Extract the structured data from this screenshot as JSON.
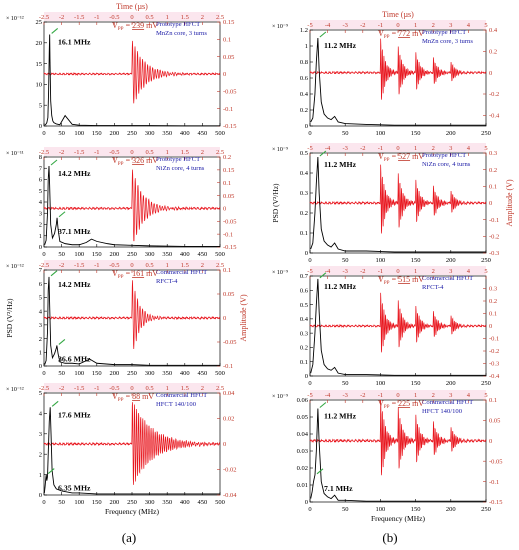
{
  "figure_labels": {
    "a": "(a)",
    "b": "(b)"
  },
  "colors": {
    "psd": "#000000",
    "signal": "#e8141c",
    "axis_right": "#c0392b",
    "annotation_blue": "#1a1aa6",
    "highlight_bg": "#fbe6ee",
    "arrow": "#35a845"
  },
  "chart_data": [
    {
      "id": "a1",
      "type": "line",
      "xlabel": "",
      "x2label": "Time (µs)",
      "ylabel": "",
      "y2label": "",
      "xlim": [
        0,
        500
      ],
      "x2lim": [
        -2.5,
        2.5
      ],
      "ylim": [
        0,
        25
      ],
      "y2lim": [
        -0.15,
        0.15
      ],
      "x_ticks": [
        "0",
        "50",
        "100",
        "150",
        "200",
        "250",
        "300",
        "350",
        "400",
        "450",
        "500"
      ],
      "x2_ticks": [
        "-2.5",
        "-2",
        "-1.5",
        "-1",
        "-0.5",
        "0",
        "0.5",
        "1",
        "1.5",
        "2",
        "2.5"
      ],
      "y_ticks": [
        "0",
        "5",
        "10",
        "15",
        "20",
        "25"
      ],
      "y_exponent": "× 10⁻¹²",
      "y2_ticks": [
        "-0.15",
        "-0.1",
        "-0.05",
        "0",
        "0.05",
        "0.1",
        "0.15"
      ],
      "vpp_text": "Vₚₚ = 239 mV",
      "legend": [
        "Prototype HFCT",
        "MnZn core, 3 turns"
      ],
      "peaks": [
        {
          "label": "16.1 MHz",
          "f": 16.1,
          "psd": 22
        }
      ],
      "psd_series": {
        "x": [
          2,
          5,
          8,
          11,
          13,
          15,
          16.1,
          17,
          19,
          22,
          25,
          28,
          35,
          45,
          60,
          80,
          100,
          150,
          200,
          250,
          300,
          400,
          500
        ],
        "y": [
          0.2,
          0.4,
          0.8,
          2,
          8,
          18,
          22,
          16,
          6,
          2.5,
          1.2,
          0.8,
          0.5,
          0.3,
          2.5,
          0.4,
          0.2,
          0.1,
          0.1,
          0.1,
          0.1,
          0.05,
          0.05
        ]
      },
      "signal": {
        "onset_us": 0.0,
        "amplitude": 0.1,
        "decay": 0.35,
        "freq": 14,
        "bursts": [
          0.0
        ]
      }
    },
    {
      "id": "a2",
      "type": "line",
      "xlabel": "",
      "x2label": "",
      "ylabel": "",
      "y2label": "",
      "xlim": [
        0,
        500
      ],
      "x2lim": [
        -2.5,
        2.5
      ],
      "ylim": [
        0,
        8
      ],
      "y2lim": [
        -0.15,
        0.2
      ],
      "x_ticks": [
        "0",
        "50",
        "100",
        "150",
        "200",
        "250",
        "300",
        "350",
        "400",
        "450",
        "500"
      ],
      "x2_ticks": [
        "-2.5",
        "-2",
        "-1.5",
        "-1",
        "-0.5",
        "0",
        "0.5",
        "1",
        "1.5",
        "2",
        "2.5"
      ],
      "y_ticks": [
        "0",
        "1",
        "2",
        "3",
        "4",
        "5",
        "6",
        "7",
        "8"
      ],
      "y_exponent": "× 10⁻¹¹",
      "y2_ticks": [
        "-0.15",
        "-0.1",
        "-0.05",
        "0",
        "0.05",
        "0.1",
        "0.15",
        "0.2"
      ],
      "vpp_text": "Vₚₚ = 326 mV",
      "legend": [
        "Prototype HFCT",
        "NiZn core, 4 turns"
      ],
      "peaks": [
        {
          "label": "14.2 MHz",
          "f": 14.2,
          "psd": 7.2
        },
        {
          "label": "37.1 MHz",
          "f": 37.1,
          "psd": 2.6
        }
      ],
      "psd_series": {
        "x": [
          2,
          6,
          10,
          12,
          14.2,
          16,
          19,
          24,
          30,
          35,
          37.1,
          40,
          45,
          60,
          80,
          100,
          120,
          135,
          150,
          180,
          200,
          250,
          300,
          400,
          500
        ],
        "y": [
          0.2,
          0.6,
          3,
          6,
          7.2,
          5.5,
          2,
          0.8,
          1.2,
          2,
          2.6,
          1.6,
          0.5,
          0.3,
          0.2,
          0.2,
          0.4,
          0.7,
          0.5,
          0.3,
          0.2,
          0.15,
          0.1,
          0.05,
          0.05
        ]
      },
      "signal": {
        "onset_us": 0.0,
        "amplitude": 0.16,
        "decay": 0.3,
        "freq": 13,
        "bursts": [
          0.0
        ]
      }
    },
    {
      "id": "a3",
      "type": "line",
      "xlabel": "",
      "x2label": "",
      "ylabel": "PSD (V²/Hz)",
      "y2label": "Amplitude (V)",
      "xlim": [
        0,
        500
      ],
      "x2lim": [
        -2.5,
        2.5
      ],
      "ylim": [
        0,
        7
      ],
      "y2lim": [
        -0.1,
        0.1
      ],
      "x_ticks": [
        "0",
        "50",
        "100",
        "150",
        "200",
        "250",
        "300",
        "350",
        "400",
        "450",
        "500"
      ],
      "x2_ticks": [
        "-2.5",
        "-2",
        "-1.5",
        "-1",
        "-0.5",
        "0",
        "0.5",
        "1",
        "1.5",
        "2",
        "2.5"
      ],
      "y_ticks": [
        "0",
        "1",
        "2",
        "3",
        "4",
        "5",
        "6",
        "7"
      ],
      "y_exponent": "× 10⁻¹²",
      "y2_ticks": [
        "-0.1",
        "-0.05",
        "0",
        "0.05",
        "0.1"
      ],
      "vpp_text": "Vₚₚ = 161 mV",
      "legend": [
        "Commercial HFCT",
        "RFCT-4"
      ],
      "peaks": [
        {
          "label": "14.2 MHz",
          "f": 14.2,
          "psd": 6.5
        },
        {
          "label": "36.6 MHz",
          "f": 36.6,
          "psd": 1.5
        }
      ],
      "psd_series": {
        "x": [
          2,
          6,
          10,
          12,
          14.2,
          16,
          19,
          24,
          30,
          35,
          36.6,
          40,
          45,
          60,
          80,
          100,
          130,
          150,
          200,
          250,
          300,
          400,
          500
        ],
        "y": [
          0.1,
          0.4,
          2.5,
          5.5,
          6.5,
          4.5,
          1.5,
          0.6,
          0.9,
          1.3,
          1.5,
          0.9,
          0.3,
          0.2,
          0.2,
          0.15,
          0.5,
          0.2,
          0.1,
          0.1,
          0.05,
          0.05,
          0.05
        ]
      },
      "signal": {
        "onset_us": 0.0,
        "amplitude": 0.085,
        "decay": 0.2,
        "freq": 14,
        "bursts": [
          0.0
        ]
      }
    },
    {
      "id": "a4",
      "type": "line",
      "xlabel": "Frequency (MHz)",
      "x2label": "",
      "ylabel": "",
      "y2label": "",
      "xlim": [
        0,
        500
      ],
      "x2lim": [
        -2.5,
        2.5
      ],
      "ylim": [
        0,
        5
      ],
      "y2lim": [
        -0.04,
        0.04
      ],
      "x_ticks": [
        "0",
        "50",
        "100",
        "150",
        "200",
        "250",
        "300",
        "350",
        "400",
        "450",
        "500"
      ],
      "x2_ticks": [
        "-2.5",
        "-2",
        "-1.5",
        "-1",
        "-0.5",
        "0",
        "0.5",
        "1",
        "1.5",
        "2",
        "2.5"
      ],
      "y_ticks": [
        "0",
        "1",
        "2",
        "3",
        "4",
        "5"
      ],
      "y_exponent": "× 10⁻¹²",
      "y2_ticks": [
        "-0.04",
        "-0.02",
        "0",
        "0.02",
        "0.04"
      ],
      "vpp_text": "Vₚₚ = 88 mV",
      "legend": [
        "Commercial HFCT",
        "HFCT 140/100"
      ],
      "peaks": [
        {
          "label": "17.6 MHz",
          "f": 17.6,
          "psd": 4.3
        },
        {
          "label": "6.35 MHz",
          "f": 6.35,
          "psd": 1.0
        }
      ],
      "psd_series": {
        "x": [
          1,
          3,
          5,
          6.35,
          8,
          10,
          12,
          15,
          17.6,
          20,
          23,
          28,
          35,
          50,
          80,
          100,
          150,
          200,
          250,
          300,
          400,
          500
        ],
        "y": [
          0.1,
          0.4,
          0.8,
          1.0,
          0.7,
          0.9,
          2,
          3.6,
          4.3,
          3,
          1.2,
          0.5,
          0.3,
          0.2,
          0.1,
          0.1,
          0.05,
          0.05,
          0.05,
          0.05,
          0.05,
          0.05
        ]
      },
      "signal": {
        "onset_us": 0.0,
        "amplitude": 0.035,
        "decay": 0.55,
        "freq": 17,
        "bursts": [
          0.0
        ]
      }
    },
    {
      "id": "b1",
      "type": "line",
      "xlabel": "",
      "x2label": "Time (µs)",
      "ylabel": "",
      "y2label": "",
      "xlim": [
        0,
        250
      ],
      "x2lim": [
        -5,
        5
      ],
      "ylim": [
        0,
        1.2
      ],
      "y2lim": [
        -0.5,
        0.4
      ],
      "x_ticks": [
        "0",
        "50",
        "100",
        "150",
        "200",
        "250"
      ],
      "x2_ticks": [
        "-5",
        "-4",
        "-3",
        "-2",
        "-1",
        "0",
        "1",
        "2",
        "3",
        "4",
        "5"
      ],
      "y_ticks": [
        "0",
        "0.2",
        "0.4",
        "0.6",
        "0.8",
        "1",
        "1.2"
      ],
      "y_exponent": "× 10⁻⁹",
      "y2_ticks": [
        "-0.4",
        "-0.2",
        "0",
        "0.2",
        "0.4"
      ],
      "vpp_text": "Vₚₚ = 772 mV",
      "legend": [
        "Prototype HFCT",
        "MnZn core, 3 turns"
      ],
      "peaks": [
        {
          "label": "11.2 MHz",
          "f": 11.2,
          "psd": 1.1
        }
      ],
      "psd_series": {
        "x": [
          1,
          4,
          7,
          9,
          11.2,
          13,
          16,
          20,
          25,
          30,
          35,
          40,
          50,
          80,
          120,
          160,
          200,
          250
        ],
        "y": [
          0.05,
          0.1,
          0.4,
          0.8,
          1.1,
          0.7,
          0.3,
          0.15,
          0.1,
          0.08,
          0.12,
          0.05,
          0.03,
          0.02,
          0.01,
          0.01,
          0.01,
          0.01
        ]
      },
      "signal": {
        "onset_us": -1.0,
        "amplitude": 0.36,
        "decay": 0.25,
        "freq": 11,
        "bursts": [
          -1.0,
          0.0,
          1.0,
          2.0,
          3.0
        ]
      }
    },
    {
      "id": "b2",
      "type": "line",
      "xlabel": "",
      "x2label": "",
      "ylabel": "PSD (V²/Hz)",
      "y2label": "Amplitude (V)",
      "xlim": [
        0,
        250
      ],
      "x2lim": [
        -5,
        5
      ],
      "ylim": [
        0,
        0.5
      ],
      "y2lim": [
        -0.3,
        0.3
      ],
      "x_ticks": [
        "0",
        "50",
        "100",
        "150",
        "200",
        "250"
      ],
      "x2_ticks": [
        "-5",
        "-4",
        "-3",
        "-2",
        "-1",
        "0",
        "1",
        "2",
        "3",
        "4",
        "5"
      ],
      "y_ticks": [
        "0",
        "0.1",
        "0.2",
        "0.3",
        "0.4",
        "0.5"
      ],
      "y_exponent": "× 10⁻⁹",
      "y2_ticks": [
        "-0.3",
        "-0.2",
        "-0.1",
        "0",
        "0.1",
        "0.2",
        "0.3"
      ],
      "vpp_text": "Vₚₚ = 527 mV",
      "legend": [
        "Prototype HFCT",
        "NiZn core, 4 turns"
      ],
      "peaks": [
        {
          "label": "11.2 MHz",
          "f": 11.2,
          "psd": 0.48
        }
      ],
      "psd_series": {
        "x": [
          1,
          4,
          7,
          9,
          11.2,
          13,
          16,
          20,
          25,
          30,
          35,
          40,
          50,
          80,
          120,
          160,
          200,
          250
        ],
        "y": [
          0.02,
          0.05,
          0.2,
          0.35,
          0.48,
          0.3,
          0.12,
          0.06,
          0.04,
          0.03,
          0.05,
          0.02,
          0.01,
          0.01,
          0.005,
          0.005,
          0.005,
          0.005
        ]
      },
      "signal": {
        "onset_us": -1.0,
        "amplitude": 0.26,
        "decay": 0.25,
        "freq": 11,
        "bursts": [
          -1.0,
          0.0,
          1.0,
          2.0,
          3.0
        ]
      }
    },
    {
      "id": "b3",
      "type": "line",
      "xlabel": "",
      "x2label": "",
      "ylabel": "",
      "y2label": "",
      "xlim": [
        0,
        250
      ],
      "x2lim": [
        -5,
        5
      ],
      "ylim": [
        0,
        0.7
      ],
      "y2lim": [
        -0.4,
        0.4
      ],
      "x_ticks": [
        "0",
        "50",
        "100",
        "150",
        "200",
        "250"
      ],
      "x2_ticks": [
        "-5",
        "-4",
        "-3",
        "-2",
        "-1",
        "0",
        "1",
        "2",
        "3",
        "4",
        "5"
      ],
      "y_ticks": [
        "0",
        "0.1",
        "0.2",
        "0.3",
        "0.4",
        "0.5",
        "0.6",
        "0.7"
      ],
      "y_exponent": "× 10⁻⁹",
      "y2_ticks": [
        "-0.4",
        "-0.3",
        "-0.2",
        "-0.1",
        "0",
        "0.1",
        "0.2",
        "0.3"
      ],
      "vpp_text": "Vₚₚ = 515 mV",
      "legend": [
        "Commercial HFCT",
        "RFCT-4"
      ],
      "peaks": [
        {
          "label": "11.2 MHz",
          "f": 11.2,
          "psd": 0.68
        }
      ],
      "psd_series": {
        "x": [
          1,
          4,
          7,
          9,
          11.2,
          13,
          16,
          20,
          25,
          30,
          35,
          40,
          50,
          80,
          120,
          160,
          200,
          250
        ],
        "y": [
          0.02,
          0.08,
          0.3,
          0.5,
          0.68,
          0.45,
          0.18,
          0.08,
          0.05,
          0.04,
          0.06,
          0.02,
          0.01,
          0.01,
          0.005,
          0.005,
          0.005,
          0.005
        ]
      },
      "signal": {
        "onset_us": -1.0,
        "amplitude": 0.3,
        "decay": 0.25,
        "freq": 11,
        "bursts": [
          -1.0,
          0.0,
          1.0,
          2.0,
          3.0
        ]
      }
    },
    {
      "id": "b4",
      "type": "line",
      "xlabel": "Frequency (MHz)",
      "x2label": "",
      "ylabel": "",
      "y2label": "",
      "xlim": [
        0,
        250
      ],
      "x2lim": [
        -5,
        5
      ],
      "ylim": [
        0,
        0.06
      ],
      "y2lim": [
        -0.15,
        0.1
      ],
      "x_ticks": [
        "0",
        "50",
        "100",
        "150",
        "200",
        "250"
      ],
      "x2_ticks": [
        "-5",
        "-4",
        "-3",
        "-2",
        "-1",
        "0",
        "1",
        "2",
        "3",
        "4",
        "5"
      ],
      "y_ticks": [
        "0",
        "0.01",
        "0.02",
        "0.03",
        "0.04",
        "0.05",
        "0.06"
      ],
      "y_exponent": "× 10⁻⁹",
      "y2_ticks": [
        "-0.15",
        "-0.1",
        "-0.05",
        "0",
        "0.05",
        "0.1"
      ],
      "vpp_text": "Vₚₚ = 225 mV",
      "legend": [
        "Commercial HFCT",
        "HFCT 140/100"
      ],
      "peaks": [
        {
          "label": "11.2 MHz",
          "f": 11.2,
          "psd": 0.055
        },
        {
          "label": "7.1 MHz",
          "f": 7.1,
          "psd": 0.016
        }
      ],
      "psd_series": {
        "x": [
          1,
          3,
          5,
          7.1,
          9,
          11.2,
          13,
          16,
          20,
          25,
          30,
          35,
          40,
          50,
          80,
          120,
          160,
          200,
          250
        ],
        "y": [
          0.002,
          0.006,
          0.012,
          0.016,
          0.03,
          0.055,
          0.035,
          0.012,
          0.005,
          0.003,
          0.002,
          0.004,
          0.001,
          0.001,
          0.0005,
          0.0005,
          0.0005,
          0.0005,
          0.0005
        ]
      },
      "signal": {
        "onset_us": -1.0,
        "amplitude": 0.12,
        "decay": 0.25,
        "freq": 11,
        "bursts": [
          -1.0,
          0.0,
          1.0,
          2.0,
          3.0
        ]
      }
    }
  ]
}
